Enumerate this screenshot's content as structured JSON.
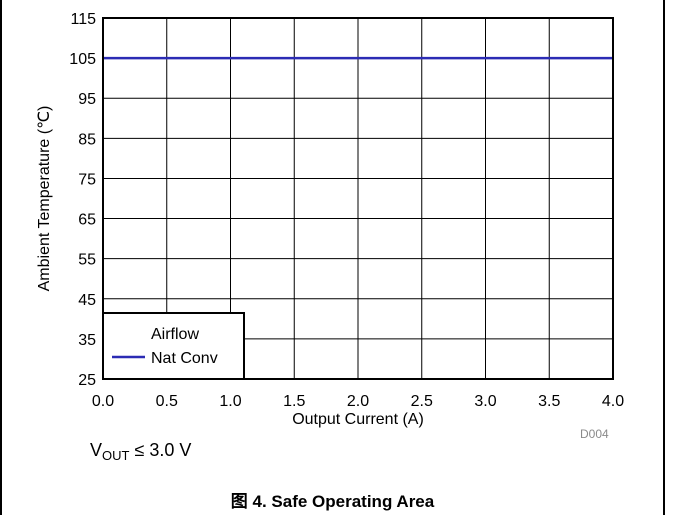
{
  "chart_data": {
    "type": "line",
    "x": [
      0.0,
      4.0
    ],
    "series": [
      {
        "name": "Nat Conv",
        "values": [
          105,
          105
        ],
        "color": "#2b2bb4"
      }
    ],
    "xlabel": "Output Current (A)",
    "ylabel": "Ambient Temperature (℃)",
    "xlim": [
      0,
      4
    ],
    "ylim": [
      25,
      115
    ],
    "x_ticks": [
      "0.0",
      "0.5",
      "1.0",
      "1.5",
      "2.0",
      "2.5",
      "3.0",
      "3.5",
      "4.0"
    ],
    "y_ticks": [
      "25",
      "35",
      "45",
      "55",
      "65",
      "75",
      "85",
      "95",
      "105",
      "115"
    ],
    "grid": true,
    "legend": {
      "title": "Airflow",
      "placement": "bottom-left"
    }
  },
  "figure_code": "D004",
  "condition": {
    "prefix": "V",
    "subscript": "OUT",
    "suffix": " ≤ 3.0 V"
  },
  "caption": "图 4. Safe Operating Area"
}
